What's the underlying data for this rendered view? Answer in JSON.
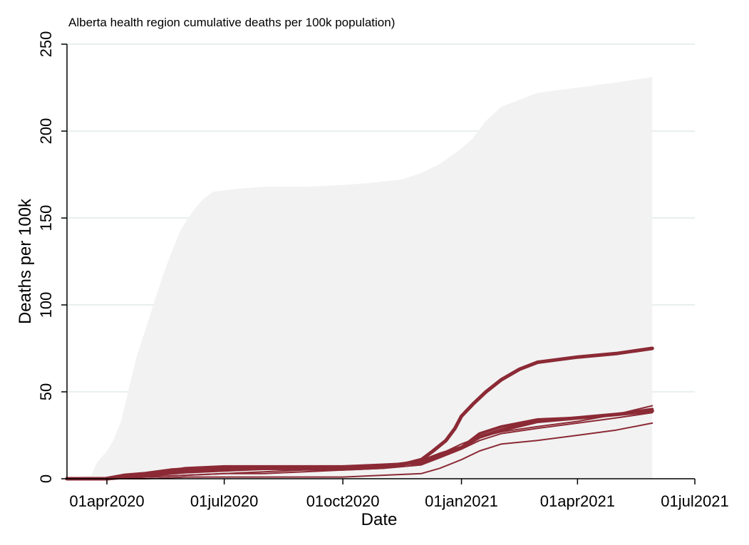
{
  "chart_data": {
    "type": "line",
    "title": "Alberta health region cumulative deaths per 100k population)",
    "xlabel": "Date",
    "ylabel": "Deaths per 100k",
    "ylim": [
      0,
      250
    ],
    "yticks": [
      0,
      50,
      100,
      150,
      200,
      250
    ],
    "xlim": [
      "2020-03-01",
      "2021-07-01"
    ],
    "xticks": [
      {
        "date": "2020-04-01",
        "label": "01apr2020"
      },
      {
        "date": "2020-07-01",
        "label": "01jul2020"
      },
      {
        "date": "2020-10-01",
        "label": "01oct2020"
      },
      {
        "date": "2021-01-01",
        "label": "01jan2021"
      },
      {
        "date": "2021-04-01",
        "label": "01apr2021"
      },
      {
        "date": "2021-07-01",
        "label": "01jul2021"
      }
    ],
    "grid": true,
    "colors": {
      "line": "#8b2a35",
      "background_area": "#f2f2f2",
      "grid": "#dfeaea"
    },
    "background_area": {
      "x": [
        "2020-03-01",
        "2020-03-20",
        "2020-03-24",
        "2020-04-01",
        "2020-04-06",
        "2020-04-12",
        "2020-04-18",
        "2020-04-24",
        "2020-05-01",
        "2020-05-07",
        "2020-05-14",
        "2020-05-21",
        "2020-05-28",
        "2020-06-03",
        "2020-06-10",
        "2020-06-15",
        "2020-06-22",
        "2020-07-01",
        "2020-07-15",
        "2020-08-01",
        "2020-08-15",
        "2020-09-01",
        "2020-10-01",
        "2020-10-20",
        "2020-11-01",
        "2020-11-15",
        "2020-12-01",
        "2020-12-15",
        "2021-01-01",
        "2021-01-10",
        "2021-01-20",
        "2021-02-01",
        "2021-02-15",
        "2021-03-01",
        "2021-04-01",
        "2021-05-01",
        "2021-05-29"
      ],
      "y": [
        0,
        2,
        9,
        16,
        22,
        33,
        52,
        70,
        86,
        100,
        116,
        130,
        143,
        150,
        157,
        161,
        165,
        166,
        167,
        168,
        168,
        168,
        169,
        170,
        171,
        172,
        176,
        181,
        190,
        196,
        206,
        214,
        218,
        222,
        225,
        228,
        231
      ]
    },
    "series": [
      {
        "width": 5,
        "x": [
          "2020-03-01",
          "2020-03-31",
          "2020-04-15",
          "2020-05-01",
          "2020-05-21",
          "2020-06-15",
          "2020-07-15",
          "2020-08-15",
          "2020-09-15",
          "2020-10-15",
          "2020-11-01",
          "2020-11-15",
          "2020-12-01",
          "2020-12-10",
          "2020-12-20",
          "2020-12-27",
          "2021-01-01",
          "2021-01-10",
          "2021-01-20",
          "2021-02-01",
          "2021-02-15",
          "2021-03-01",
          "2021-04-01",
          "2021-05-01",
          "2021-05-29"
        ],
        "y": [
          0,
          0,
          2,
          3,
          5,
          6,
          6,
          6,
          6,
          7,
          7,
          8,
          11,
          16,
          22,
          29,
          36,
          43,
          50,
          57,
          63,
          67,
          70,
          72,
          75
        ]
      },
      {
        "width": 5,
        "x": [
          "2020-03-01",
          "2020-04-01",
          "2020-05-01",
          "2020-06-01",
          "2020-07-01",
          "2020-08-01",
          "2020-09-01",
          "2020-10-01",
          "2020-11-01",
          "2020-12-01",
          "2020-12-15",
          "2021-01-01",
          "2021-01-15",
          "2021-02-01",
          "2021-03-01",
          "2021-04-01",
          "2021-05-01",
          "2021-05-29"
        ],
        "y": [
          0,
          0,
          2,
          4,
          5,
          6,
          6,
          6,
          7,
          10,
          14,
          18,
          24,
          28,
          33,
          35,
          37,
          39
        ]
      },
      {
        "width": 4,
        "x": [
          "2020-03-01",
          "2020-04-01",
          "2020-05-01",
          "2020-06-01",
          "2020-07-01",
          "2020-08-01",
          "2020-09-01",
          "2020-10-01",
          "2020-11-01",
          "2020-12-01",
          "2020-12-15",
          "2021-01-01",
          "2021-01-15",
          "2021-02-01",
          "2021-03-01",
          "2021-04-01",
          "2021-05-01",
          "2021-05-29"
        ],
        "y": [
          0,
          0,
          3,
          6,
          7,
          7,
          7,
          7,
          8,
          9,
          13,
          18,
          26,
          30,
          34,
          35,
          37,
          40
        ]
      },
      {
        "width": 2,
        "x": [
          "2020-03-01",
          "2020-04-01",
          "2020-05-01",
          "2020-06-01",
          "2020-07-01",
          "2020-08-01",
          "2020-09-01",
          "2020-10-01",
          "2020-11-01",
          "2020-12-01",
          "2020-12-15",
          "2021-01-01",
          "2021-01-15",
          "2021-02-01",
          "2021-03-01",
          "2021-04-01",
          "2021-05-01",
          "2021-05-29"
        ],
        "y": [
          0,
          0,
          1,
          2,
          3,
          4,
          5,
          5,
          6,
          8,
          14,
          20,
          24,
          27,
          30,
          33,
          37,
          42
        ]
      },
      {
        "width": 2,
        "x": [
          "2020-03-01",
          "2020-04-01",
          "2020-05-01",
          "2020-06-01",
          "2020-07-01",
          "2020-08-01",
          "2020-09-01",
          "2020-10-01",
          "2020-11-01",
          "2020-12-01",
          "2020-12-15",
          "2021-01-01",
          "2021-01-15",
          "2021-02-01",
          "2021-03-01",
          "2021-04-01",
          "2021-05-01",
          "2021-05-29"
        ],
        "y": [
          0,
          0,
          1,
          2,
          3,
          3,
          4,
          5,
          6,
          8,
          12,
          17,
          22,
          26,
          29,
          32,
          35,
          38
        ]
      },
      {
        "width": 2,
        "x": [
          "2020-03-01",
          "2020-04-01",
          "2020-05-01",
          "2020-06-01",
          "2020-07-01",
          "2020-08-01",
          "2020-09-01",
          "2020-10-01",
          "2020-11-01",
          "2020-12-01",
          "2020-12-15",
          "2021-01-01",
          "2021-01-15",
          "2021-02-01",
          "2021-03-01",
          "2021-04-01",
          "2021-05-01",
          "2021-05-29"
        ],
        "y": [
          0,
          0,
          0,
          1,
          1,
          1,
          1,
          1,
          2,
          3,
          6,
          11,
          16,
          20,
          22,
          25,
          28,
          32
        ]
      }
    ]
  }
}
